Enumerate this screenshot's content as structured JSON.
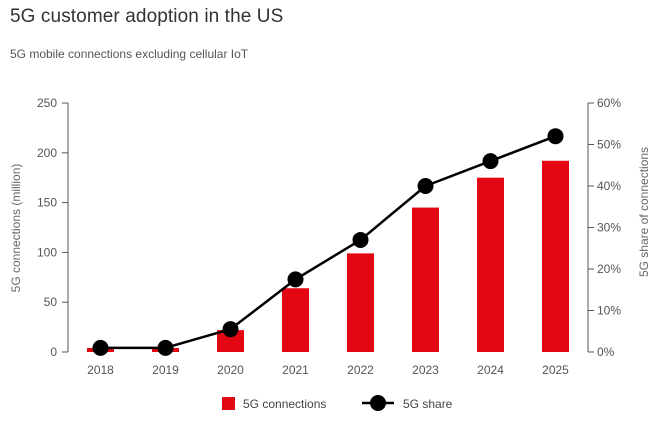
{
  "header": {
    "title": "5G customer adoption in the US",
    "subtitle": "5G mobile connections excluding cellular IoT"
  },
  "colors": {
    "bar": "#e30613",
    "line": "#000000",
    "axis": "#555555"
  },
  "chart_data": {
    "type": "bar",
    "categories": [
      "2018",
      "2019",
      "2020",
      "2021",
      "2022",
      "2023",
      "2024",
      "2025"
    ],
    "series": [
      {
        "name": "5G connections",
        "type": "bar",
        "axis": "left",
        "values": [
          4,
          4,
          22,
          64,
          99,
          145,
          175,
          192
        ]
      },
      {
        "name": "5G share",
        "type": "line",
        "axis": "right",
        "values": [
          1,
          1,
          5.5,
          17.5,
          27,
          40,
          46,
          52
        ]
      }
    ],
    "ylabel": "5G connections (million)",
    "ylim": [
      0,
      250
    ],
    "yticks": [
      "0",
      "50",
      "100",
      "150",
      "200",
      "250"
    ],
    "y2label": "5G share of connections",
    "y2lim": [
      0,
      60
    ],
    "y2ticks": [
      "0%",
      "10%",
      "20%",
      "30%",
      "40%",
      "50%",
      "60%"
    ],
    "grid": false,
    "legend": "bottom-center"
  }
}
